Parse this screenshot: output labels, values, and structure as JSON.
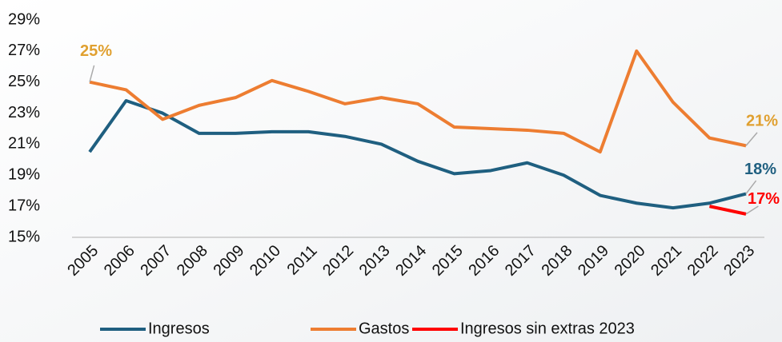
{
  "chart_data": {
    "type": "line",
    "categories": [
      "2005",
      "2006",
      "2007",
      "2008",
      "2009",
      "2010",
      "2011",
      "2012",
      "2013",
      "2014",
      "2015",
      "2016",
      "2017",
      "2018",
      "2019",
      "2020",
      "2021",
      "2022",
      "2023"
    ],
    "series": [
      {
        "name": "Ingresos",
        "color": "#1f5f80",
        "values": [
          20.5,
          23.8,
          23.0,
          21.7,
          21.7,
          21.8,
          21.8,
          21.5,
          21.0,
          19.9,
          19.1,
          19.3,
          19.8,
          19.0,
          17.7,
          17.2,
          16.9,
          17.2,
          17.8
        ],
        "value_labels": [
          null,
          null,
          null,
          null,
          null,
          null,
          null,
          null,
          null,
          null,
          null,
          null,
          null,
          null,
          null,
          null,
          null,
          null,
          "18%"
        ]
      },
      {
        "name": "Gastos",
        "color": "#ed7d31",
        "values": [
          25.0,
          24.5,
          22.6,
          23.5,
          24.0,
          25.1,
          24.4,
          23.6,
          24.0,
          23.6,
          22.1,
          22.0,
          21.9,
          21.7,
          20.5,
          27.0,
          23.7,
          21.4,
          20.9
        ],
        "value_labels": [
          "25%",
          null,
          null,
          null,
          null,
          null,
          null,
          null,
          null,
          null,
          null,
          null,
          null,
          null,
          null,
          null,
          null,
          null,
          "21%"
        ]
      },
      {
        "name": "Ingresos sin extras 2023",
        "color": "#ff0000",
        "values": [
          null,
          null,
          null,
          null,
          null,
          null,
          null,
          null,
          null,
          null,
          null,
          null,
          null,
          null,
          null,
          null,
          null,
          17.0,
          16.5
        ],
        "value_labels": [
          null,
          null,
          null,
          null,
          null,
          null,
          null,
          null,
          null,
          null,
          null,
          null,
          null,
          null,
          null,
          null,
          null,
          null,
          "17%"
        ]
      }
    ],
    "ylim": [
      15,
      29
    ],
    "yticks": [
      {
        "value": 15,
        "label": "15%"
      },
      {
        "value": 17,
        "label": "17%"
      },
      {
        "value": 19,
        "label": "19%"
      },
      {
        "value": 21,
        "label": "21%"
      },
      {
        "value": 23,
        "label": "23%"
      },
      {
        "value": 25,
        "label": "25%"
      },
      {
        "value": 27,
        "label": "27%"
      },
      {
        "value": 29,
        "label": "29%"
      }
    ],
    "legend": "bottom",
    "grid": false
  }
}
